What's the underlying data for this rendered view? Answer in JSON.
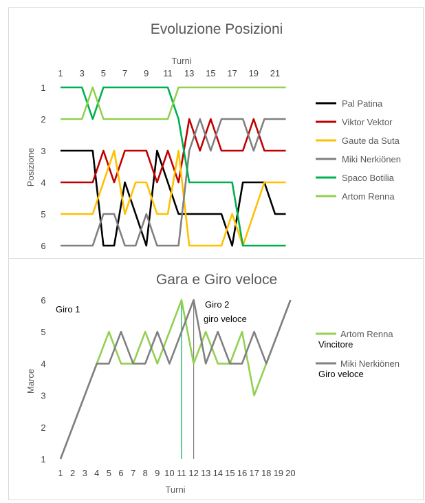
{
  "colors": {
    "Pal Patina": "#000000",
    "Viktor Vektor": "#c00000",
    "Gaute da Suta": "#ffc000",
    "Miki Nerkiönen": "#808080",
    "Spaco Botilia": "#00b050",
    "Artom Renna": "#92d050"
  },
  "chart_data": [
    {
      "type": "line",
      "title": "Evoluzione Posizioni",
      "xlabel": "Turni",
      "ylabel": "Posizione",
      "x": [
        1,
        2,
        3,
        4,
        5,
        6,
        7,
        8,
        9,
        10,
        11,
        12,
        13,
        14,
        15,
        16,
        17,
        18,
        19,
        20,
        21,
        22
      ],
      "x_tick_labels": [
        "1",
        "3",
        "5",
        "7",
        "9",
        "11",
        "13",
        "15",
        "17",
        "19",
        "21"
      ],
      "y_tick_labels": [
        "1",
        "2",
        "3",
        "4",
        "5",
        "6"
      ],
      "ylim": [
        1,
        6
      ],
      "y_inverted": true,
      "legend_position": "right",
      "series": [
        {
          "name": "Pal Patina",
          "values": [
            3,
            3,
            3,
            3,
            6,
            6,
            4,
            5,
            6,
            3,
            4,
            5,
            5,
            5,
            5,
            5,
            6,
            4,
            4,
            4,
            5,
            5
          ]
        },
        {
          "name": "Viktor Vektor",
          "values": [
            4,
            4,
            4,
            4,
            3,
            4,
            3,
            3,
            3,
            4,
            3,
            4,
            2,
            3,
            2,
            3,
            3,
            3,
            2,
            3,
            3,
            3
          ]
        },
        {
          "name": "Gaute da Suta",
          "values": [
            5,
            5,
            5,
            5,
            4,
            3,
            5,
            4,
            4,
            5,
            5,
            3,
            6,
            6,
            6,
            6,
            5,
            6,
            5,
            4,
            4,
            4
          ]
        },
        {
          "name": "Miki Nerkiönen",
          "values": [
            6,
            6,
            6,
            6,
            5,
            5,
            6,
            6,
            5,
            6,
            6,
            6,
            3,
            2,
            3,
            2,
            2,
            2,
            3,
            2,
            2,
            2
          ]
        },
        {
          "name": "Spaco Botilia",
          "values": [
            1,
            1,
            1,
            2,
            1,
            1,
            1,
            1,
            1,
            1,
            1,
            2,
            4,
            4,
            4,
            4,
            4,
            6,
            6,
            6,
            6,
            6
          ]
        },
        {
          "name": "Artom Renna",
          "values": [
            2,
            2,
            2,
            1,
            2,
            2,
            2,
            2,
            2,
            2,
            2,
            1,
            1,
            1,
            1,
            1,
            1,
            1,
            1,
            1,
            1,
            1
          ]
        }
      ]
    },
    {
      "type": "line",
      "title": "Gara e Giro veloce",
      "xlabel": "Turni",
      "ylabel": "Marce",
      "x": [
        1,
        2,
        3,
        4,
        5,
        6,
        7,
        8,
        9,
        10,
        11,
        12,
        13,
        14,
        15,
        16,
        17,
        18,
        19,
        20
      ],
      "x_tick_labels": [
        "1",
        "2",
        "3",
        "4",
        "5",
        "6",
        "7",
        "8",
        "9",
        "10",
        "11",
        "12",
        "13",
        "14",
        "15",
        "16",
        "17",
        "18",
        "19",
        "20"
      ],
      "y_tick_labels": [
        "1",
        "2",
        "3",
        "4",
        "5",
        "6"
      ],
      "ylim": [
        1,
        6
      ],
      "legend_position": "right",
      "series": [
        {
          "name": "Artom Renna",
          "sublabel": "Vincitore",
          "values": [
            1,
            2,
            3,
            4,
            5,
            4,
            4,
            5,
            4,
            5,
            6,
            4,
            5,
            4,
            4,
            5,
            3,
            4,
            5,
            6
          ]
        },
        {
          "name": "Miki Nerkiönen",
          "sublabel": "Giro veloce",
          "values": [
            1,
            2,
            3,
            4,
            4,
            5,
            4,
            4,
            5,
            4,
            5,
            6,
            4,
            5,
            4,
            4,
            5,
            4,
            5,
            6
          ]
        }
      ],
      "annotations": [
        {
          "text": "Giro 1"
        },
        {
          "text": "Giro 2"
        },
        {
          "text": "giro veloce"
        }
      ],
      "markers": [
        {
          "x": 11,
          "color": "#00b050"
        },
        {
          "x": 12,
          "color": "#808080"
        }
      ]
    }
  ]
}
